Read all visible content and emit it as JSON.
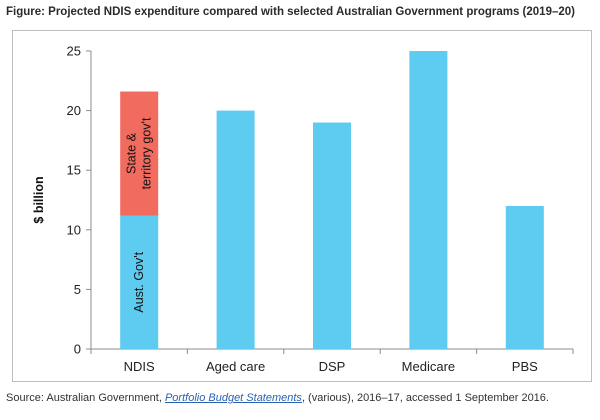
{
  "figure": {
    "title": "Figure: Projected NDIS expenditure compared with selected Australian Government programs (2019–20)",
    "source_prefix": "Source: Australian Government, ",
    "source_publication": "Portfolio Budget Statements",
    "source_suffix": ", (various), 2016–17, accessed 1 September 2016."
  },
  "chart_data": {
    "type": "bar",
    "stacked": true,
    "title": "",
    "xlabel": "",
    "ylabel": "$ billion",
    "ylim": [
      0,
      25
    ],
    "yticks": [
      0,
      5,
      10,
      15,
      20,
      25
    ],
    "grid": false,
    "legend": "none",
    "categories": [
      "NDIS",
      "Aged care",
      "DSP",
      "Medicare",
      "PBS"
    ],
    "series": [
      {
        "values": [
          11.2,
          20,
          19,
          25,
          12
        ],
        "color": "#5ecbf0",
        "inline_labels": [
          "Aust. Gov't",
          null,
          null,
          null,
          null
        ]
      },
      {
        "values": [
          10.4,
          0,
          0,
          0,
          0
        ],
        "color": "#f26b5f",
        "inline_labels": [
          "State & territory gov't",
          null,
          null,
          null,
          null
        ]
      }
    ]
  }
}
